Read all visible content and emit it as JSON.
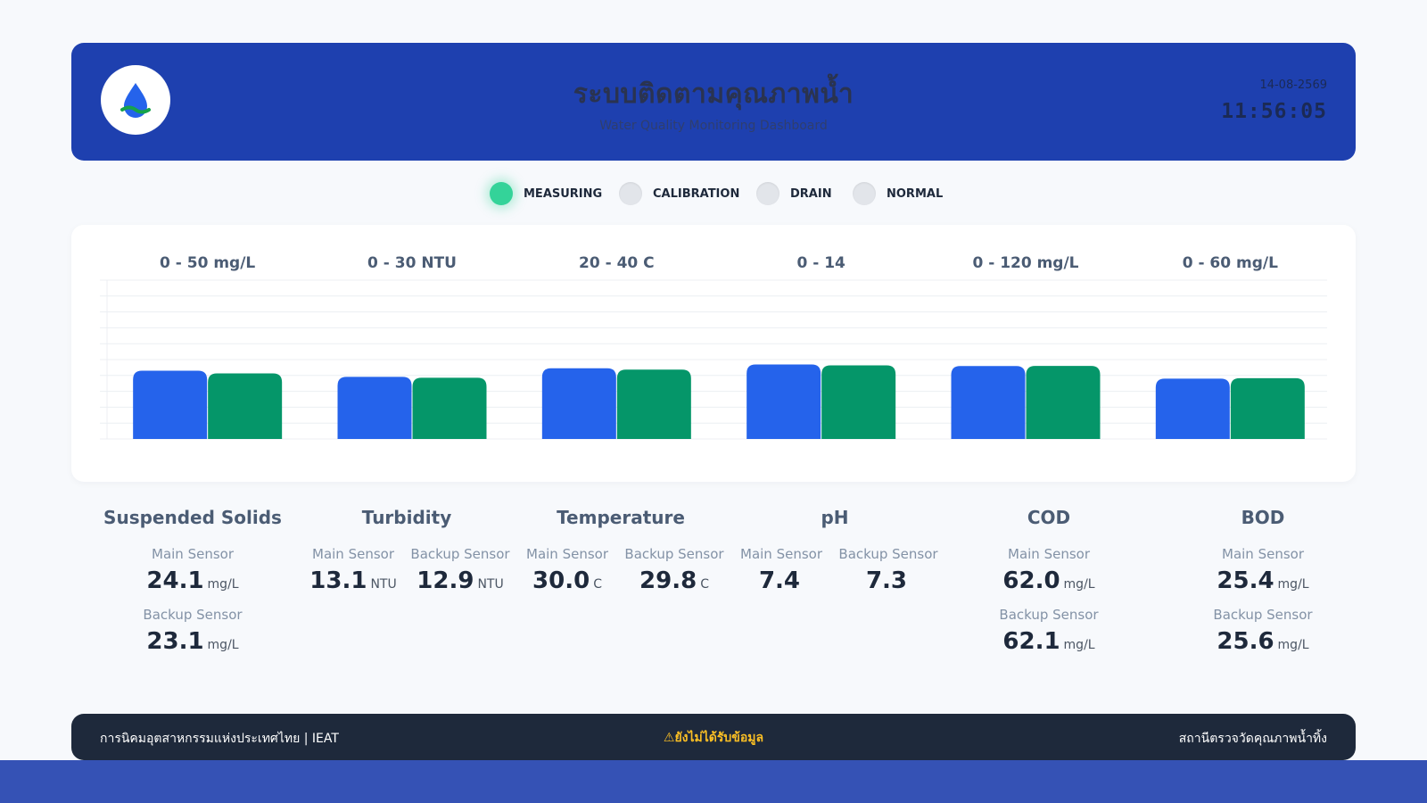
{
  "header": {
    "title_th": "ระบบติดตามคุณภาพน้ำ",
    "title_en": "Water Quality Monitoring Dashboard",
    "date": "14-08-2569",
    "time": "11:56:05",
    "logo_icon": "water-drop-icon"
  },
  "statuses": [
    {
      "label": "MEASURING",
      "active": true
    },
    {
      "label": "CALIBRATION",
      "active": false
    },
    {
      "label": "DRAIN",
      "active": false
    },
    {
      "label": "NORMAL",
      "active": false
    }
  ],
  "colors": {
    "main": "#2563eb",
    "backup": "#059669",
    "header": "#1e40af",
    "footer": "#1e293b",
    "active": "#34d399",
    "warning": "#fbbf24"
  },
  "chart_data": {
    "type": "bar",
    "categories": [
      "Suspended Solids",
      "Turbidity",
      "Temperature",
      "pH",
      "COD",
      "BOD"
    ],
    "range_labels": [
      "0 - 50 mg/L",
      "0 - 30 NTU",
      "20 - 40 C",
      "0 - 14",
      "0 - 120 mg/L",
      "0 - 60 mg/L"
    ],
    "ranges": [
      [
        0,
        50
      ],
      [
        0,
        30
      ],
      [
        20,
        40
      ],
      [
        0,
        14
      ],
      [
        0,
        120
      ],
      [
        0,
        60
      ]
    ],
    "series": [
      {
        "values": [
          24.1,
          13.1,
          30.0,
          7.4,
          62.0,
          25.4
        ]
      },
      {
        "values": [
          23.1,
          12.9,
          29.8,
          7.3,
          62.1,
          25.6
        ]
      }
    ],
    "grid": true
  },
  "metrics": [
    {
      "name": "Suspended Solids",
      "sensors": [
        {
          "label": "Main Sensor",
          "value": "24.1",
          "unit": "mg/L"
        },
        {
          "label": "Backup Sensor",
          "value": "23.1",
          "unit": "mg/L"
        }
      ]
    },
    {
      "name": "Turbidity",
      "sensors": [
        {
          "label": "Main Sensor",
          "value": "13.1",
          "unit": "NTU"
        },
        {
          "label": "Backup Sensor",
          "value": "12.9",
          "unit": "NTU"
        }
      ]
    },
    {
      "name": "Temperature",
      "sensors": [
        {
          "label": "Main Sensor",
          "value": "30.0",
          "unit": "C"
        },
        {
          "label": "Backup Sensor",
          "value": "29.8",
          "unit": "C"
        }
      ]
    },
    {
      "name": "pH",
      "sensors": [
        {
          "label": "Main Sensor",
          "value": "7.4",
          "unit": ""
        },
        {
          "label": "Backup Sensor",
          "value": "7.3",
          "unit": ""
        }
      ]
    },
    {
      "name": "COD",
      "sensors": [
        {
          "label": "Main Sensor",
          "value": "62.0",
          "unit": "mg/L"
        },
        {
          "label": "Backup Sensor",
          "value": "62.1",
          "unit": "mg/L"
        }
      ]
    },
    {
      "name": "BOD",
      "sensors": [
        {
          "label": "Main Sensor",
          "value": "25.4",
          "unit": "mg/L"
        },
        {
          "label": "Backup Sensor",
          "value": "25.6",
          "unit": "mg/L"
        }
      ]
    }
  ],
  "footer": {
    "left": "การนิคมอุตสาหกรรมแห่งประเทศไทย | IEAT",
    "center": "⚠ยังไม่ได้รับข้อมูล",
    "right": "สถานีตรวจวัดคุณภาพน้ำทิ้ง"
  }
}
